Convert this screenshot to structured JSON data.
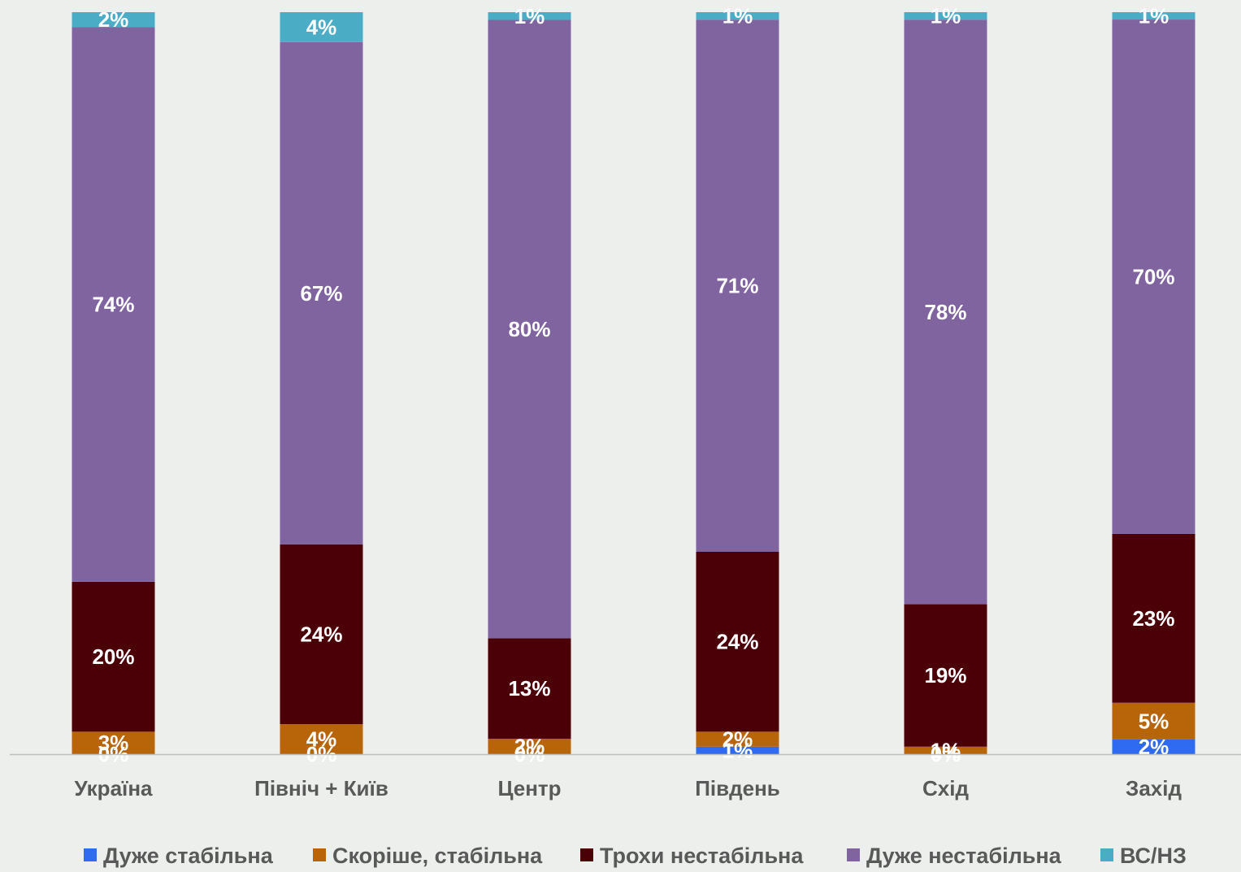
{
  "chart_data": {
    "type": "bar",
    "stacked": true,
    "categories": [
      "Україна",
      "Північ + Київ",
      "Центр",
      "Південь",
      "Схід",
      "Захід"
    ],
    "series": [
      {
        "name": "Дуже стабільна",
        "color": "#2E6BF0",
        "values": [
          0,
          0,
          0,
          1,
          0,
          2
        ],
        "labels": [
          "0%",
          "0%",
          "0%",
          "1%",
          "0%",
          "2%"
        ]
      },
      {
        "name": "Скоріше, стабільна",
        "color": "#B8650A",
        "values": [
          3,
          4,
          2,
          2,
          1,
          5
        ],
        "labels": [
          "3%",
          "4%",
          "2%",
          "2%",
          "1%",
          "5%"
        ]
      },
      {
        "name": "Трохи нестабільна",
        "color": "#4B0008",
        "values": [
          20,
          24,
          13,
          24,
          19,
          23
        ],
        "labels": [
          "20%",
          "24%",
          "13%",
          "24%",
          "19%",
          "23%"
        ]
      },
      {
        "name": "Дуже нестабільна",
        "color": "#8064A0",
        "values": [
          74,
          67,
          80,
          71,
          78,
          70
        ],
        "labels": [
          "74%",
          "67%",
          "80%",
          "71%",
          "78%",
          "70%"
        ]
      },
      {
        "name": "ВС/НЗ",
        "color": "#4BACC6",
        "values": [
          2,
          4,
          1,
          1,
          1,
          1
        ],
        "labels": [
          "2%",
          "4%",
          "1%",
          "1%",
          "1%",
          "1%"
        ]
      }
    ],
    "ylim": [
      0,
      100
    ],
    "legend_position": "bottom",
    "grid": false
  },
  "colors": {
    "background": "#ECEFEC",
    "axis_line": "#BFBFBF",
    "label_text": "#FFFFFF",
    "category_text": "#595959"
  }
}
